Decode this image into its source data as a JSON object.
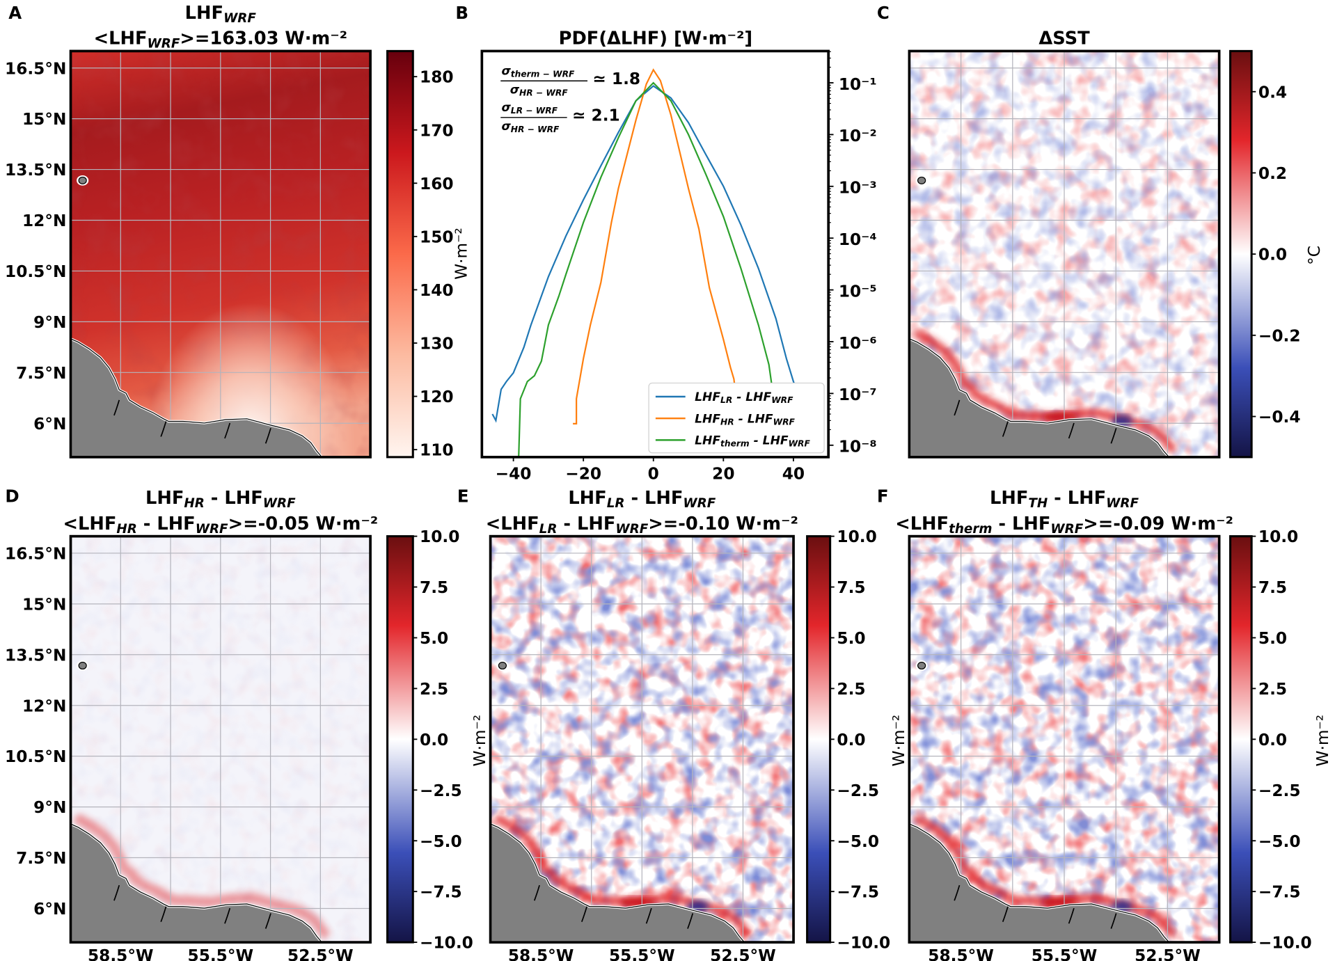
{
  "figure": {
    "panels": {
      "a": {
        "letter": "A",
        "title": [
          "LHF",
          "WRF"
        ],
        "subtitle": [
          "<LHF",
          "WRF",
          ">=163.03 W·m⁻²"
        ],
        "colorbar": {
          "cmap": "Reds",
          "range": [
            108.6,
            184.8
          ],
          "ticks": [
            110,
            120,
            130,
            140,
            150,
            160,
            170,
            180
          ],
          "tick_labels": [
            "110",
            "120",
            "130",
            "140",
            "150",
            "160",
            "170",
            "180"
          ],
          "label": "W·m⁻²"
        }
      },
      "b": {
        "letter": "B"
      },
      "c": {
        "letter": "C",
        "title": [
          "ΔSST"
        ],
        "colorbar": {
          "cmap": "seismic",
          "range": [
            -0.5,
            0.5
          ],
          "ticks": [
            0.4,
            0.2,
            0.0,
            -0.2,
            -0.4
          ],
          "tick_labels": [
            "0.4",
            "0.2",
            "0.0",
            "−0.2",
            "−0.4"
          ],
          "label": "°C"
        }
      },
      "d": {
        "letter": "D",
        "title": [
          "LHF",
          "HR",
          " - LHF",
          "WRF"
        ],
        "subtitle": [
          "<LHF",
          "HR",
          " - LHF",
          "WRF",
          ">=-0.05 W·m⁻²"
        ],
        "colorbar": {
          "cmap": "seismic",
          "range": [
            -10,
            10
          ],
          "ticks": [
            10,
            7.5,
            5,
            2.5,
            0,
            -2.5,
            -5,
            -7.5,
            -10
          ],
          "tick_labels": [
            "10.0",
            "7.5",
            "5.0",
            "2.5",
            "0.0",
            "−2.5",
            "−5.0",
            "−7.5",
            "−10.0"
          ]
        }
      },
      "e": {
        "letter": "E",
        "title": [
          "LHF",
          "LR",
          " - LHF",
          "WRF"
        ],
        "subtitle": [
          "<LHF",
          "LR",
          " - LHF",
          "WRF",
          ">=-0.10 W·m⁻²"
        ],
        "colorbar": {
          "cmap": "seismic",
          "range": [
            -10,
            10
          ],
          "ticks": [
            10,
            7.5,
            5,
            2.5,
            0,
            -2.5,
            -5,
            -7.5,
            -10
          ],
          "tick_labels": [
            "10.0",
            "7.5",
            "5.0",
            "2.5",
            "0.0",
            "−2.5",
            "−5.0",
            "−7.5",
            "−10.0"
          ],
          "label": "W·m⁻²"
        }
      },
      "f": {
        "letter": "F",
        "title": [
          "LHF",
          "TH",
          " - LHF",
          "WRF"
        ],
        "subtitle": [
          "<LHF",
          "therm",
          " - LHF",
          "WRF",
          ">=-0.09 W·m⁻²"
        ],
        "colorbar": {
          "cmap": "seismic",
          "range": [
            -10,
            10
          ],
          "ticks": [
            10,
            7.5,
            5,
            2.5,
            0,
            -2.5,
            -5,
            -7.5,
            -10
          ],
          "tick_labels": [
            "10.0",
            "7.5",
            "5.0",
            "2.5",
            "0.0",
            "−2.5",
            "−5.0",
            "−7.5",
            "−10.0"
          ],
          "label": "W·m⁻²"
        }
      }
    },
    "map": {
      "lon_range": [
        -60,
        -51
      ],
      "lat_range": [
        5,
        17
      ],
      "grid_step_deg": 1.5,
      "lat_ticks": [
        16.5,
        15,
        13.5,
        12,
        10.5,
        9,
        7.5,
        6
      ],
      "lat_tick_labels": [
        "16.5°N",
        "15°N",
        "13.5°N",
        "12°N",
        "10.5°N",
        "9°N",
        "7.5°N",
        "6°N"
      ],
      "lon_ticks": [
        -58.5,
        -55.5,
        -52.5
      ],
      "lon_tick_labels": [
        "58.5°W",
        "55.5°W",
        "52.5°W"
      ],
      "land_color": "#808080"
    }
  },
  "chart_data": {
    "type": "line",
    "title": "PDF(ΔLHF) [W·m⁻²]",
    "xlim": [
      -49,
      50
    ],
    "ylim": [
      5.9e-09,
      0.41
    ],
    "yscale": "log",
    "y_axis_side": "right",
    "x_ticks": [
      -40,
      -20,
      0,
      20,
      40
    ],
    "x_tick_labels": [
      "−40",
      "−20",
      "0",
      "20",
      "40"
    ],
    "y_ticks": [
      0.1,
      0.01,
      0.001,
      0.0001,
      1e-05,
      1e-06,
      1e-07,
      1e-08
    ],
    "y_tick_labels": [
      "10⁻¹",
      "10⁻²",
      "10⁻³",
      "10⁻⁴",
      "10⁻⁵",
      "10⁻⁶",
      "10⁻⁷",
      "10⁻⁸"
    ],
    "legend": "lower-right",
    "annotations": [
      {
        "num": [
          "σ",
          "therm − WRF"
        ],
        "den": [
          "σ",
          "HR − WRF"
        ],
        "value": "≃ 1.8"
      },
      {
        "num": [
          "σ",
          "LR − WRF"
        ],
        "den": [
          "σ",
          "HR − WRF"
        ],
        "value": "≃ 2.1"
      }
    ],
    "series": [
      {
        "name": [
          "LHF",
          "LR",
          " - LHF",
          "WRF"
        ],
        "color": "#1f77b4",
        "x": [
          -46,
          -45,
          -43.5,
          -42,
          -40,
          -37,
          -35,
          -32,
          -30,
          -25,
          -20,
          -15,
          -10,
          -5,
          0,
          5,
          10,
          15,
          20,
          25,
          30,
          35,
          38,
          40,
          43,
          46
        ],
        "y": [
          4e-08,
          3e-08,
          1.2e-07,
          1.7e-07,
          2.5e-07,
          7.8e-07,
          2.1e-06,
          7.6e-06,
          1.8e-05,
          0.00011,
          0.00055,
          0.0025,
          0.011,
          0.045,
          0.087,
          0.051,
          0.017,
          0.0041,
          0.001,
          0.00018,
          2.6e-05,
          2.8e-06,
          4.7e-07,
          1.7e-07,
          4.9e-08,
          1.8e-08
        ]
      },
      {
        "name": [
          "LHF",
          "HR",
          " - LHF",
          "WRF"
        ],
        "color": "#ff7f0e",
        "x": [
          -23,
          -22,
          -22,
          -20,
          -18,
          -15,
          -12,
          -10,
          -5,
          -2,
          0,
          2,
          5,
          10,
          13,
          16,
          20,
          22,
          23,
          24,
          26,
          27
        ],
        "y": [
          2.6e-08,
          2.6e-08,
          7.9e-08,
          4.7e-07,
          2.1e-06,
          1.4e-05,
          0.0002,
          0.00091,
          0.019,
          0.095,
          0.178,
          0.11,
          0.024,
          0.00091,
          0.00015,
          1.1e-05,
          1.1e-06,
          3.2e-07,
          1.9e-07,
          4.9e-08,
          1.4e-08,
          7.2e-09
        ]
      },
      {
        "name": [
          "LHF",
          "therm",
          " - LHF",
          "WRF"
        ],
        "color": "#2ca02c",
        "x": [
          -38.5,
          -38,
          -36,
          -34,
          -32,
          -30,
          -27,
          -25,
          -20,
          -15,
          -10,
          -5,
          0,
          5,
          10,
          15,
          20,
          25,
          30,
          33,
          34,
          35,
          36
        ],
        "y": [
          5.9e-09,
          7.9e-08,
          1.7e-07,
          2.2e-07,
          4.2e-07,
          2.1e-06,
          7.6e-06,
          2e-05,
          0.0002,
          0.0015,
          0.0087,
          0.045,
          0.1,
          0.045,
          0.01,
          0.0017,
          0.00026,
          2.6e-05,
          2.1e-06,
          3.6e-07,
          1.2e-07,
          3.3e-08,
          1.1e-08
        ]
      }
    ]
  }
}
